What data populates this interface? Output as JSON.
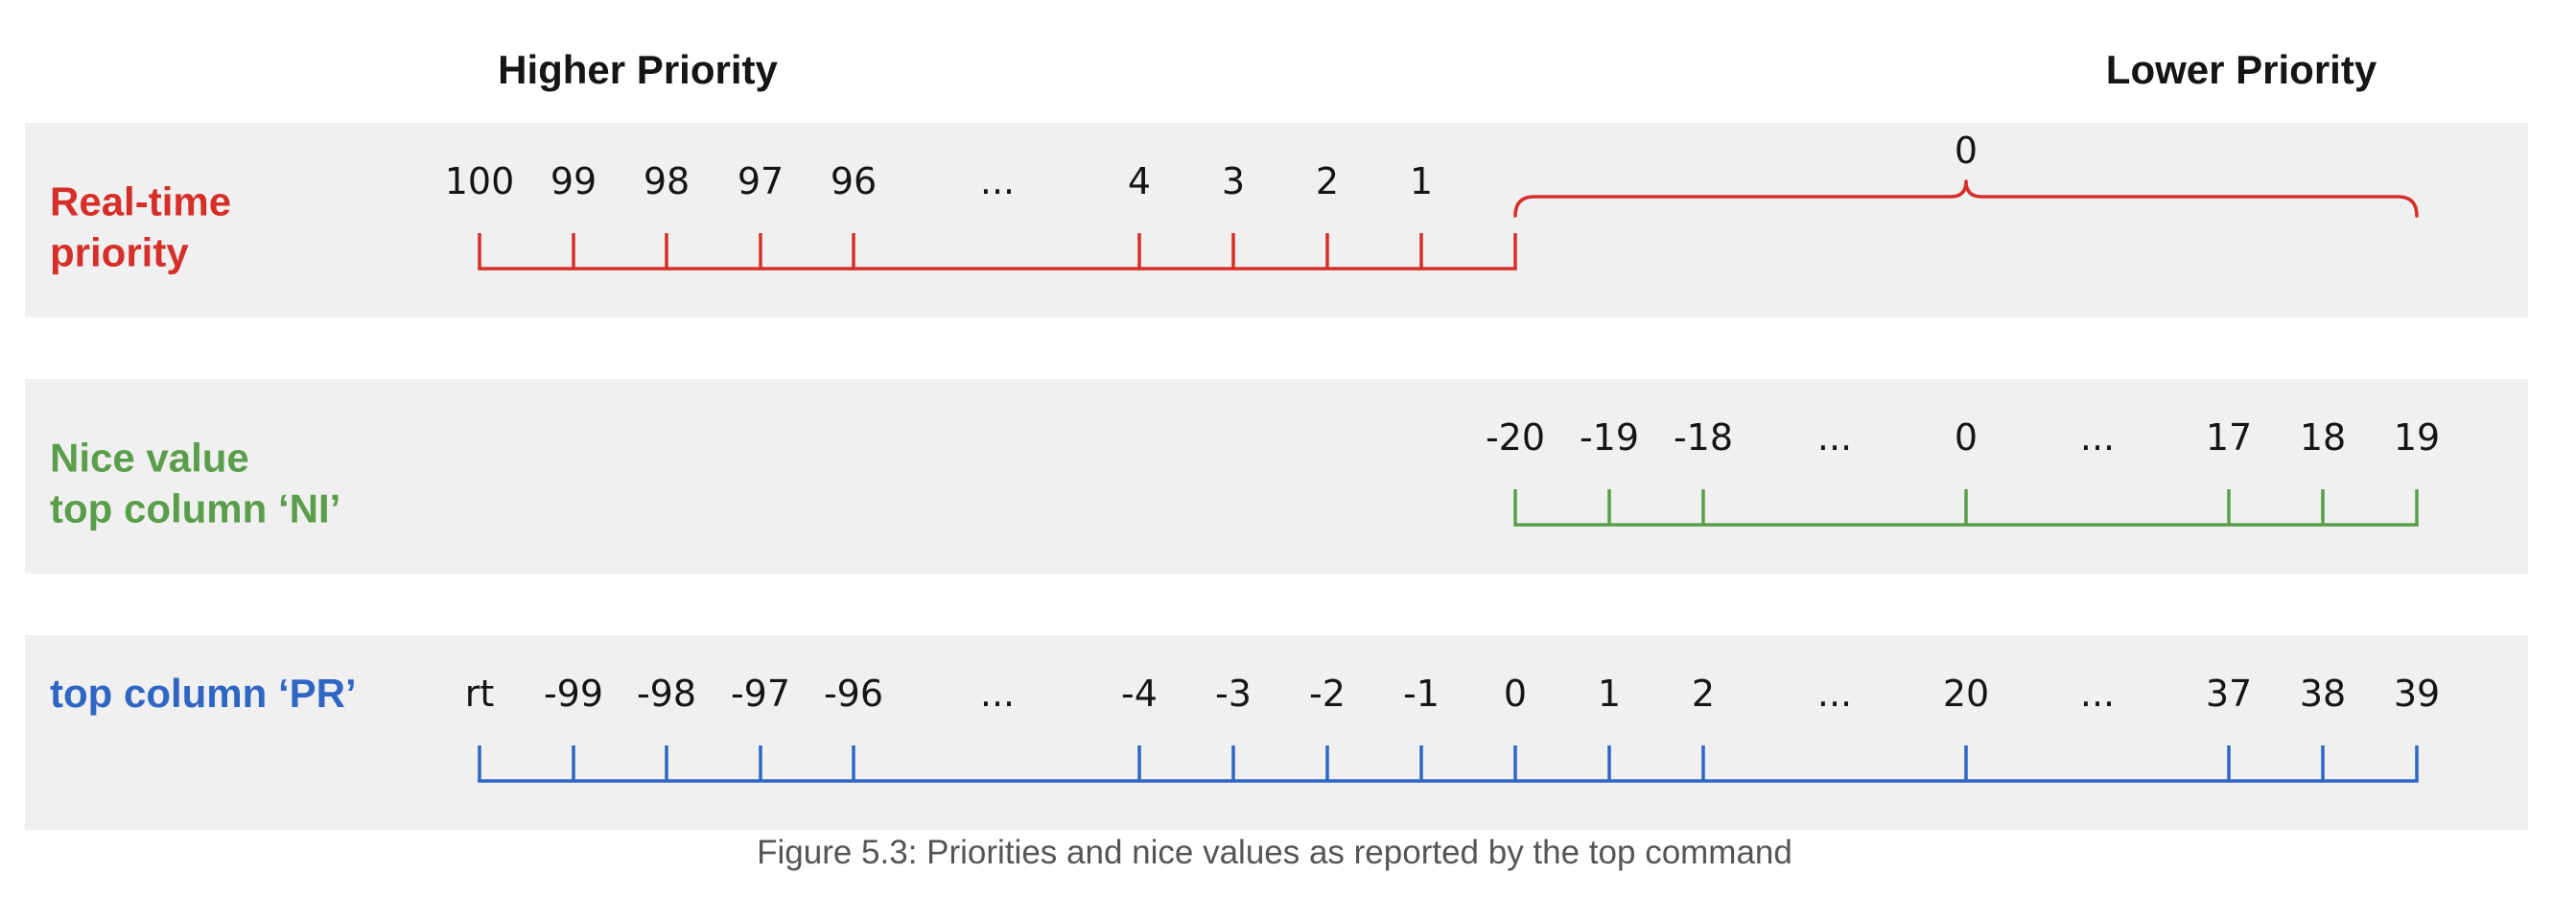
{
  "headings": {
    "higher": "Higher Priority",
    "lower": "Lower Priority"
  },
  "colors": {
    "realtime": "#d62f2a",
    "nice": "#5a9e4b",
    "pr": "#2f66c4",
    "text": "#151515",
    "band": "#f0f0f0",
    "caption": "#555555"
  },
  "columns": [
    "100",
    "99",
    "98",
    "97",
    "96",
    "...",
    "4",
    "3",
    "2",
    "1",
    "0",
    "1",
    "2",
    "...",
    "20",
    "...",
    "37",
    "38",
    "39"
  ],
  "rows": [
    {
      "id": "realtime",
      "label_lines": [
        "Real-time",
        "priority"
      ],
      "color_key": "realtime",
      "labels": [
        "100",
        "99",
        "98",
        "97",
        "96",
        "...",
        "4",
        "3",
        "2",
        "1"
      ],
      "tick_columns": [
        0,
        1,
        2,
        3,
        4,
        6,
        7,
        8,
        9,
        10
      ],
      "label_columns": [
        0,
        1,
        2,
        3,
        4,
        5,
        6,
        7,
        8,
        9
      ],
      "brace_label": "0"
    },
    {
      "id": "nice",
      "label_lines": [
        "Nice value",
        "top column ‘NI’"
      ],
      "color_key": "nice",
      "labels": [
        "-20",
        "-19",
        "-18",
        "...",
        "0",
        "...",
        "17",
        "18",
        "19"
      ],
      "tick_columns": [
        10,
        11,
        12,
        14,
        16,
        17,
        18
      ],
      "label_columns": [
        10,
        11,
        12,
        13,
        14,
        15,
        16,
        17,
        18
      ]
    },
    {
      "id": "pr",
      "label_lines": [
        "top column ‘PR’"
      ],
      "color_key": "pr",
      "labels": [
        "rt",
        "-99",
        "-98",
        "-97",
        "-96",
        "...",
        "-4",
        "-3",
        "-2",
        "-1",
        "0",
        "1",
        "2",
        "...",
        "20",
        "...",
        "37",
        "38",
        "39"
      ],
      "tick_columns": [
        0,
        1,
        2,
        3,
        4,
        6,
        7,
        8,
        9,
        10,
        11,
        12,
        14,
        16,
        17,
        18
      ],
      "label_columns": [
        0,
        1,
        2,
        3,
        4,
        5,
        6,
        7,
        8,
        9,
        10,
        11,
        12,
        13,
        14,
        15,
        16,
        17,
        18
      ]
    }
  ],
  "caption": "Figure 5.3: Priorities and nice values as reported by the top command"
}
